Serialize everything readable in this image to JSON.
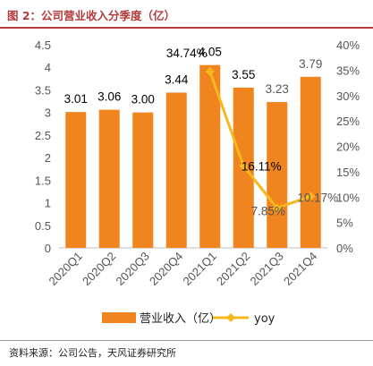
{
  "header": {
    "title": "图 2：公司营业收入分季度（亿）"
  },
  "footer": {
    "source": "资料来源：公司公告，天风证券研究所"
  },
  "colors": {
    "bar": "#f0841f",
    "line": "#f7b81e",
    "title": "#b33a3a"
  },
  "chart_data": {
    "type": "bar",
    "categories": [
      "2020Q1",
      "2020Q2",
      "2020Q3",
      "2020Q4",
      "2021Q1",
      "2021Q2",
      "2021Q3",
      "2021Q4"
    ],
    "series": [
      {
        "name": "营业收入（亿）",
        "type": "bar",
        "axis": "left",
        "values": [
          3.01,
          3.06,
          3.0,
          3.44,
          4.05,
          3.55,
          3.23,
          3.79
        ],
        "labels": [
          "3.01",
          "3.06",
          "3.00",
          "3.44",
          "4.05",
          "3.55",
          "3.23",
          "3.79"
        ]
      },
      {
        "name": "yoy",
        "type": "line",
        "axis": "right",
        "x": [
          "2021Q1",
          "2021Q2",
          "2021Q3",
          "2021Q4"
        ],
        "values": [
          0.3474,
          0.1611,
          0.0785,
          0.1017
        ],
        "labels": [
          "34.74%",
          "16.11%",
          "7.85%",
          "10.17%"
        ]
      }
    ],
    "y_left": {
      "lim": [
        0,
        4.5
      ],
      "ticks": [
        "0",
        "0.5",
        "1",
        "1.5",
        "2",
        "2.5",
        "3",
        "3.5",
        "4",
        "4.5"
      ]
    },
    "y_right": {
      "lim": [
        0,
        0.4
      ],
      "ticks": [
        "0%",
        "5%",
        "10%",
        "15%",
        "20%",
        "25%",
        "30%",
        "35%",
        "40%"
      ]
    },
    "grid": false,
    "legend": "bottom"
  }
}
